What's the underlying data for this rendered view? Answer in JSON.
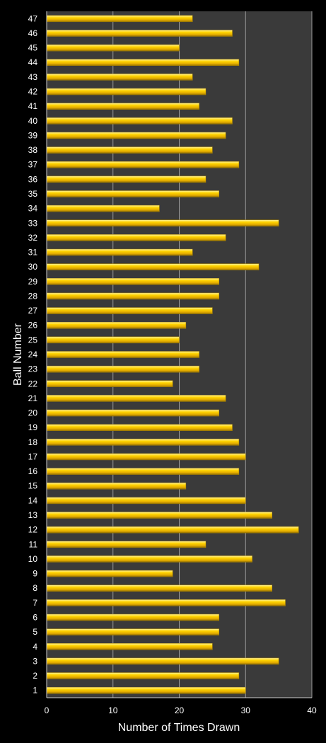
{
  "chart_data": {
    "type": "bar",
    "orientation": "horizontal",
    "title": "",
    "xlabel": "Number of Times Drawn",
    "ylabel": "Ball Number",
    "xlim": [
      0,
      40
    ],
    "x_ticks": [
      0,
      10,
      20,
      30,
      40
    ],
    "grid": true,
    "legend": "none",
    "categories": [
      "1",
      "2",
      "3",
      "4",
      "5",
      "6",
      "7",
      "8",
      "9",
      "10",
      "11",
      "12",
      "13",
      "14",
      "15",
      "16",
      "17",
      "18",
      "19",
      "20",
      "21",
      "22",
      "23",
      "24",
      "25",
      "26",
      "27",
      "28",
      "29",
      "30",
      "31",
      "32",
      "33",
      "34",
      "35",
      "36",
      "37",
      "38",
      "39",
      "40",
      "41",
      "42",
      "43",
      "44",
      "45",
      "46",
      "47"
    ],
    "values": [
      30,
      29,
      35,
      25,
      26,
      26,
      36,
      34,
      19,
      31,
      24,
      38,
      34,
      30,
      21,
      29,
      30,
      29,
      28,
      26,
      27,
      19,
      23,
      23,
      20,
      21,
      25,
      26,
      26,
      32,
      22,
      27,
      35,
      17,
      26,
      24,
      29,
      25,
      27,
      28,
      23,
      24,
      22,
      29,
      20,
      28,
      22
    ],
    "colors": {
      "background": "#000000",
      "plot_area": "#3a3a3a",
      "gridline": "#9a9a9a",
      "bar": "#ffd400",
      "bar_highlight": "#fff3a0",
      "bar_shadow": "#8a6a00",
      "text": "#ffffff"
    }
  }
}
